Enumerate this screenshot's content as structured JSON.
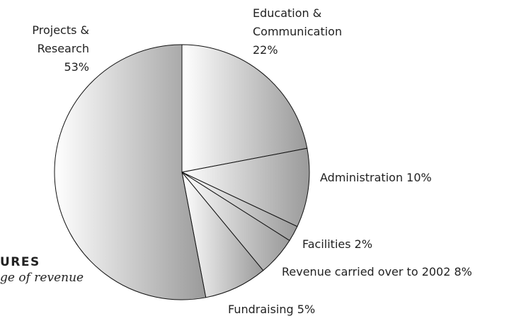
{
  "chart_data": {
    "type": "pie",
    "caption_title": "URES",
    "caption_subtitle": "ge of revenue",
    "categories": [
      "Education & Communication",
      "Administration",
      "Facilities",
      "Fundraising",
      "Revenue carried over to 2002",
      "Projects & Research"
    ],
    "values": [
      22,
      10,
      2,
      5,
      8,
      53
    ],
    "value_labels": [
      "22%",
      "10%",
      "2%",
      "5%",
      "8%",
      "53%"
    ],
    "color": "#9a9a9a"
  }
}
